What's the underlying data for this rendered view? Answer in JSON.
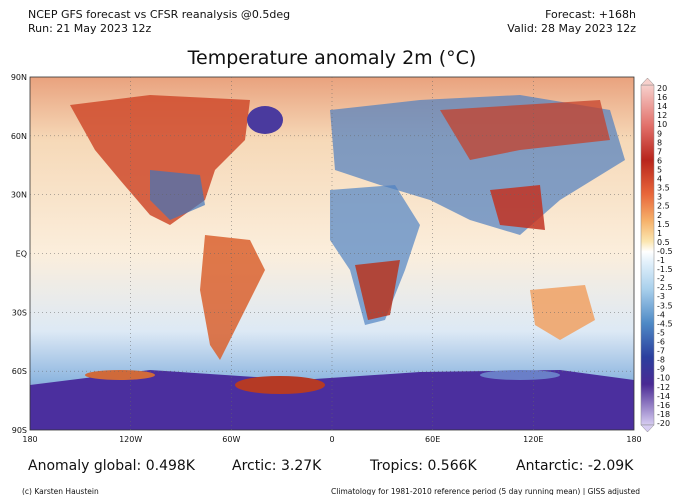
{
  "header": {
    "left": [
      "NCEP GFS forecast vs CFSR reanalysis @0.5deg",
      "Run: 21 May 2023 12z"
    ],
    "right": [
      "Forecast: +168h",
      "Valid: 28 May 2023 12z"
    ],
    "title": "Temperature anomaly 2m (°C)"
  },
  "map": {
    "lat_labels": [
      "90N",
      "60N",
      "30N",
      "EQ",
      "30S",
      "60S",
      "90S"
    ],
    "lon_labels": [
      "180",
      "120W",
      "60W",
      "0",
      "60E",
      "120E",
      "180"
    ]
  },
  "colorbar": {
    "labels": [
      "20",
      "16",
      "14",
      "12",
      "10",
      "9",
      "8",
      "7",
      "6",
      "5",
      "4",
      "3.5",
      "3",
      "2.5",
      "2",
      "1.5",
      "1",
      "0.5",
      "-0.5",
      "-1",
      "-1.5",
      "-2",
      "-2.5",
      "-3",
      "-3.5",
      "-4",
      "-4.5",
      "-5",
      "-6",
      "-7",
      "-8",
      "-9",
      "-10",
      "-12",
      "-14",
      "-16",
      "-18",
      "-20"
    ]
  },
  "stats": [
    "Anomaly global: 0.498K",
    "Arctic: 3.27K",
    "Tropics: 0.566K",
    "Antarctic: -2.09K"
  ],
  "footer": {
    "left": "(c) Karsten Haustein",
    "right": "Climatology for 1981-2010 reference period (5 day running mean) | GISS adjusted"
  }
}
